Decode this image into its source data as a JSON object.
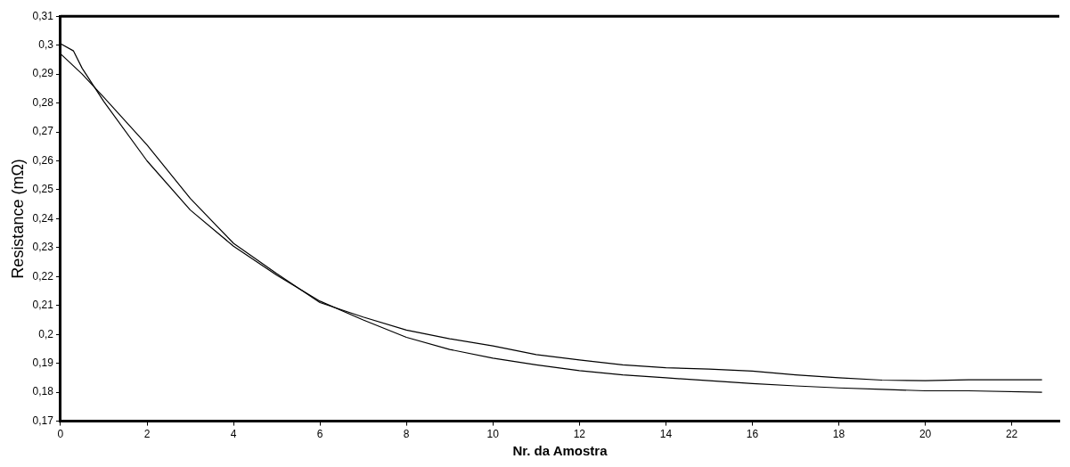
{
  "chart_data": {
    "type": "line",
    "xlabel": "Nr. da Amostra",
    "ylabel": "Resistance (mΩ)",
    "xlim": [
      0,
      23.1
    ],
    "xticks": [
      0,
      2,
      4,
      6,
      8,
      10,
      12,
      14,
      16,
      18,
      20,
      22
    ],
    "ylim": [
      0.17,
      0.31
    ],
    "yticks": [
      {
        "value": 0.17,
        "label": "0,17"
      },
      {
        "value": 0.18,
        "label": "0,18"
      },
      {
        "value": 0.19,
        "label": "0,19"
      },
      {
        "value": 0.2,
        "label": "0,2"
      },
      {
        "value": 0.21,
        "label": "0,21"
      },
      {
        "value": 0.22,
        "label": "0,22"
      },
      {
        "value": 0.23,
        "label": "0,23"
      },
      {
        "value": 0.24,
        "label": "0,24"
      },
      {
        "value": 0.25,
        "label": "0,25"
      },
      {
        "value": 0.26,
        "label": "0,26"
      },
      {
        "value": 0.27,
        "label": "0,27"
      },
      {
        "value": 0.28,
        "label": "0,28"
      },
      {
        "value": 0.29,
        "label": "0,29"
      },
      {
        "value": 0.3,
        "label": "0,3"
      },
      {
        "value": 0.31,
        "label": "0,31"
      }
    ],
    "grid": false,
    "legend": false,
    "marker": "none",
    "line_style": "solid",
    "series": [
      {
        "color": "#000000",
        "x": [
          0,
          0.5,
          1,
          2,
          3,
          4,
          5,
          6,
          7,
          8,
          9,
          10,
          11,
          12,
          13,
          14,
          15,
          16,
          17,
          18,
          19,
          20,
          21,
          22.7
        ],
        "values": [
          0.297,
          0.29,
          0.282,
          0.2655,
          0.247,
          0.2315,
          0.221,
          0.211,
          0.206,
          0.2015,
          0.1985,
          0.196,
          0.193,
          0.1912,
          0.1895,
          0.1885,
          0.188,
          0.1873,
          0.186,
          0.185,
          0.1842,
          0.184,
          0.1843,
          0.1843
        ]
      },
      {
        "color": "#000000",
        "x": [
          0,
          0.3,
          0.5,
          1,
          2,
          3,
          4,
          5,
          6,
          7,
          8,
          9,
          10,
          11,
          12,
          13,
          14,
          15,
          16,
          17,
          18,
          19,
          20,
          21,
          22.7
        ],
        "values": [
          0.3005,
          0.298,
          0.292,
          0.2805,
          0.26,
          0.243,
          0.2305,
          0.2205,
          0.2115,
          0.205,
          0.199,
          0.1948,
          0.1918,
          0.1895,
          0.1875,
          0.186,
          0.185,
          0.184,
          0.183,
          0.1822,
          0.1815,
          0.181,
          0.1805,
          0.1805,
          0.18
        ]
      }
    ]
  }
}
